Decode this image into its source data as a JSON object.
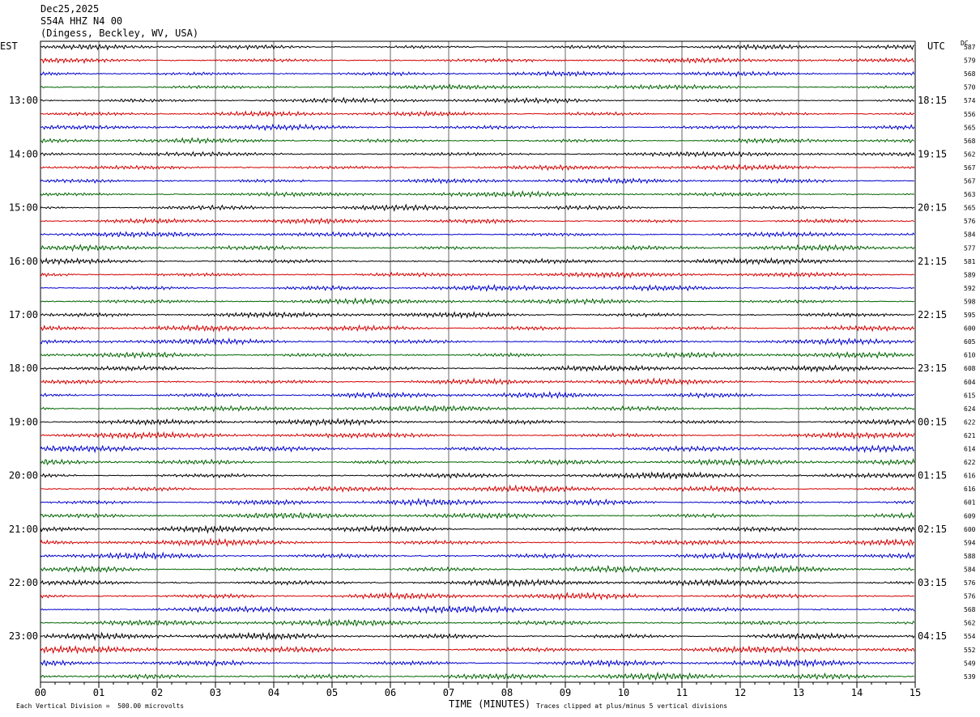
{
  "header": {
    "date": "Dec25,2025",
    "station": "S54A HHZ N4 00",
    "location": "(Dingess, Beckley, WV, USA)"
  },
  "left_axis_label": "EST",
  "right_axis_label": "UTC",
  "dc_label": "DC",
  "footer": {
    "scale_note": "Each Vertical Division =  500.00 microvolts",
    "xlabel": "TIME (MINUTES)",
    "clip_note": "Traces clipped at plus/minus 5 vertical divisions"
  },
  "colors": {
    "trace_cycle": [
      "#000000",
      "#d40000",
      "#0000cc",
      "#006400"
    ],
    "grid": "#000000",
    "background": "#ffffff"
  },
  "chart_data": {
    "type": "line",
    "xlabel": "TIME (MINUTES)",
    "xlim": [
      0,
      15
    ],
    "x_ticks": [
      "00",
      "01",
      "02",
      "03",
      "04",
      "05",
      "06",
      "07",
      "08",
      "09",
      "10",
      "11",
      "12",
      "13",
      "14",
      "15"
    ],
    "rows_per_hour": 4,
    "row_count": 48,
    "start_hour_est": "12:00",
    "hour_labels_est": [
      "13:00",
      "14:00",
      "15:00",
      "16:00",
      "17:00",
      "18:00",
      "19:00",
      "20:00",
      "21:00",
      "22:00",
      "23:00"
    ],
    "hour_labels_utc": [
      "18:15",
      "19:15",
      "20:15",
      "21:15",
      "22:15",
      "23:15",
      "00:15",
      "01:15",
      "02:15",
      "03:15",
      "04:15"
    ],
    "dc_offsets": [
      587,
      579,
      568,
      570,
      574,
      556,
      565,
      568,
      562,
      567,
      567,
      563,
      565,
      576,
      584,
      577,
      581,
      589,
      592,
      598,
      595,
      600,
      605,
      610,
      608,
      604,
      615,
      624,
      622,
      621,
      614,
      622,
      616,
      616,
      601,
      609,
      600,
      594,
      588,
      584,
      576,
      576,
      568,
      562,
      554,
      552,
      549,
      539
    ]
  }
}
